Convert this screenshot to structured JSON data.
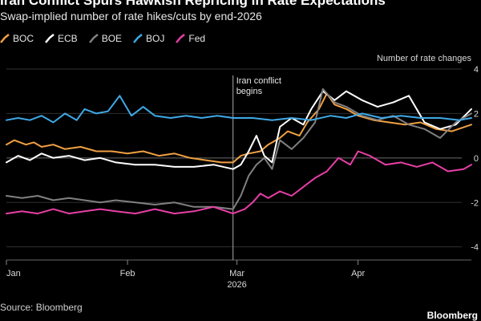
{
  "header": {
    "title": "Iran Conflict Spurs Hawkish Repricing in Rate Expectations",
    "subtitle": "Swap-implied number of rate hikes/cuts by end-2026"
  },
  "footer": {
    "source": "Source: Bloomberg",
    "brand": "Bloomberg"
  },
  "colors": {
    "BOC": "#f0a043",
    "ECB": "#ffffff",
    "BOE": "#808080",
    "BOJ": "#3fa9e6",
    "Fed": "#e83fa6"
  },
  "chart_data": {
    "type": "line",
    "title": "Iran Conflict Spurs Hawkish Repricing in Rate Expectations",
    "subtitle": "Swap-implied number of rate hikes/cuts by end-2026",
    "ylabel": "Number of rate changes",
    "xlabel": "2026",
    "x_ticks": [
      "Jan",
      "Feb",
      "Mar",
      "Apr"
    ],
    "y_ticks": [
      4,
      2,
      0,
      -2,
      -4
    ],
    "ylim": [
      -4.3,
      4
    ],
    "x_domain": [
      "2026-01-01",
      "2026-04-30"
    ],
    "grid": true,
    "legend": "top-left",
    "annotation": {
      "date": "2026-02-28",
      "label_line1": "Iran conflict",
      "label_line2": "begins"
    },
    "series": [
      {
        "name": "BOC",
        "points": [
          [
            "2026-01-01",
            0.6
          ],
          [
            "2026-01-03",
            0.8
          ],
          [
            "2026-01-06",
            0.6
          ],
          [
            "2026-01-08",
            0.7
          ],
          [
            "2026-01-10",
            0.5
          ],
          [
            "2026-01-13",
            0.6
          ],
          [
            "2026-01-16",
            0.4
          ],
          [
            "2026-01-20",
            0.5
          ],
          [
            "2026-01-24",
            0.3
          ],
          [
            "2026-01-28",
            0.3
          ],
          [
            "2026-02-01",
            0.2
          ],
          [
            "2026-02-05",
            0.3
          ],
          [
            "2026-02-09",
            0.1
          ],
          [
            "2026-02-13",
            0.2
          ],
          [
            "2026-02-17",
            0.0
          ],
          [
            "2026-02-21",
            -0.1
          ],
          [
            "2026-02-25",
            -0.2
          ],
          [
            "2026-02-28",
            -0.2
          ],
          [
            "2026-03-02",
            0.1
          ],
          [
            "2026-03-04",
            0.2
          ],
          [
            "2026-03-07",
            0.3
          ],
          [
            "2026-03-09",
            0.6
          ],
          [
            "2026-03-12",
            0.9
          ],
          [
            "2026-03-14",
            1.2
          ],
          [
            "2026-03-17",
            1.0
          ],
          [
            "2026-03-19",
            1.6
          ],
          [
            "2026-03-22",
            2.2
          ],
          [
            "2026-03-24",
            2.9
          ],
          [
            "2026-03-26",
            2.4
          ],
          [
            "2026-03-29",
            2.2
          ],
          [
            "2026-04-01",
            1.9
          ],
          [
            "2026-04-05",
            1.7
          ],
          [
            "2026-04-09",
            1.6
          ],
          [
            "2026-04-13",
            1.5
          ],
          [
            "2026-04-17",
            1.6
          ],
          [
            "2026-04-21",
            1.3
          ],
          [
            "2026-04-25",
            1.2
          ],
          [
            "2026-04-30",
            1.5
          ]
        ]
      },
      {
        "name": "ECB",
        "points": [
          [
            "2026-01-01",
            -0.2
          ],
          [
            "2026-01-04",
            0.1
          ],
          [
            "2026-01-07",
            -0.1
          ],
          [
            "2026-01-10",
            0.2
          ],
          [
            "2026-01-13",
            0.0
          ],
          [
            "2026-01-17",
            0.1
          ],
          [
            "2026-01-21",
            -0.1
          ],
          [
            "2026-01-25",
            0.0
          ],
          [
            "2026-01-29",
            -0.2
          ],
          [
            "2026-02-03",
            -0.3
          ],
          [
            "2026-02-08",
            -0.3
          ],
          [
            "2026-02-13",
            -0.4
          ],
          [
            "2026-02-18",
            -0.4
          ],
          [
            "2026-02-23",
            -0.3
          ],
          [
            "2026-02-28",
            -0.5
          ],
          [
            "2026-03-02",
            -0.3
          ],
          [
            "2026-03-04",
            0.3
          ],
          [
            "2026-03-06",
            1.0
          ],
          [
            "2026-03-08",
            0.1
          ],
          [
            "2026-03-10",
            -0.2
          ],
          [
            "2026-03-12",
            1.4
          ],
          [
            "2026-03-15",
            1.8
          ],
          [
            "2026-03-18",
            1.5
          ],
          [
            "2026-03-20",
            2.2
          ],
          [
            "2026-03-23",
            3.0
          ],
          [
            "2026-03-26",
            2.6
          ],
          [
            "2026-03-29",
            3.0
          ],
          [
            "2026-04-02",
            2.6
          ],
          [
            "2026-04-06",
            2.3
          ],
          [
            "2026-04-10",
            2.5
          ],
          [
            "2026-04-14",
            2.8
          ],
          [
            "2026-04-18",
            1.6
          ],
          [
            "2026-04-22",
            1.3
          ],
          [
            "2026-04-26",
            1.5
          ],
          [
            "2026-04-30",
            2.2
          ]
        ]
      },
      {
        "name": "BOE",
        "points": [
          [
            "2026-01-01",
            -1.7
          ],
          [
            "2026-01-05",
            -1.8
          ],
          [
            "2026-01-09",
            -1.7
          ],
          [
            "2026-01-13",
            -1.9
          ],
          [
            "2026-01-17",
            -1.8
          ],
          [
            "2026-01-21",
            -1.9
          ],
          [
            "2026-01-25",
            -2.0
          ],
          [
            "2026-01-29",
            -1.9
          ],
          [
            "2026-02-03",
            -2.0
          ],
          [
            "2026-02-08",
            -2.1
          ],
          [
            "2026-02-13",
            -2.0
          ],
          [
            "2026-02-18",
            -2.2
          ],
          [
            "2026-02-23",
            -2.2
          ],
          [
            "2026-02-28",
            -2.3
          ],
          [
            "2026-03-02",
            -1.7
          ],
          [
            "2026-03-04",
            -0.8
          ],
          [
            "2026-03-06",
            -0.3
          ],
          [
            "2026-03-08",
            0.0
          ],
          [
            "2026-03-10",
            -0.5
          ],
          [
            "2026-03-12",
            0.8
          ],
          [
            "2026-03-15",
            0.4
          ],
          [
            "2026-03-18",
            0.9
          ],
          [
            "2026-03-21",
            1.6
          ],
          [
            "2026-03-23",
            3.1
          ],
          [
            "2026-03-26",
            2.5
          ],
          [
            "2026-03-29",
            2.3
          ],
          [
            "2026-04-02",
            1.9
          ],
          [
            "2026-04-06",
            1.7
          ],
          [
            "2026-04-10",
            1.9
          ],
          [
            "2026-04-14",
            1.5
          ],
          [
            "2026-04-18",
            1.3
          ],
          [
            "2026-04-22",
            0.9
          ],
          [
            "2026-04-26",
            1.6
          ],
          [
            "2026-04-30",
            2.0
          ]
        ]
      },
      {
        "name": "BOJ",
        "points": [
          [
            "2026-01-01",
            1.7
          ],
          [
            "2026-01-04",
            1.8
          ],
          [
            "2026-01-07",
            1.7
          ],
          [
            "2026-01-10",
            1.9
          ],
          [
            "2026-01-13",
            1.6
          ],
          [
            "2026-01-16",
            2.0
          ],
          [
            "2026-01-19",
            1.7
          ],
          [
            "2026-01-21",
            2.2
          ],
          [
            "2026-01-24",
            2.0
          ],
          [
            "2026-01-27",
            2.1
          ],
          [
            "2026-01-30",
            2.8
          ],
          [
            "2026-02-02",
            1.9
          ],
          [
            "2026-02-05",
            2.3
          ],
          [
            "2026-02-08",
            1.9
          ],
          [
            "2026-02-12",
            1.8
          ],
          [
            "2026-02-16",
            1.9
          ],
          [
            "2026-02-20",
            1.8
          ],
          [
            "2026-02-24",
            1.9
          ],
          [
            "2026-02-28",
            1.8
          ],
          [
            "2026-03-05",
            1.8
          ],
          [
            "2026-03-10",
            1.7
          ],
          [
            "2026-03-15",
            1.8
          ],
          [
            "2026-03-20",
            1.7
          ],
          [
            "2026-03-25",
            1.9
          ],
          [
            "2026-03-29",
            1.8
          ],
          [
            "2026-04-02",
            2.0
          ],
          [
            "2026-04-07",
            1.8
          ],
          [
            "2026-04-12",
            1.9
          ],
          [
            "2026-04-17",
            1.8
          ],
          [
            "2026-04-22",
            1.8
          ],
          [
            "2026-04-27",
            1.7
          ],
          [
            "2026-04-30",
            1.8
          ]
        ]
      },
      {
        "name": "Fed",
        "points": [
          [
            "2026-01-01",
            -2.5
          ],
          [
            "2026-01-05",
            -2.4
          ],
          [
            "2026-01-09",
            -2.5
          ],
          [
            "2026-01-13",
            -2.3
          ],
          [
            "2026-01-17",
            -2.5
          ],
          [
            "2026-01-21",
            -2.4
          ],
          [
            "2026-01-25",
            -2.3
          ],
          [
            "2026-01-29",
            -2.4
          ],
          [
            "2026-02-03",
            -2.5
          ],
          [
            "2026-02-08",
            -2.3
          ],
          [
            "2026-02-13",
            -2.5
          ],
          [
            "2026-02-18",
            -2.4
          ],
          [
            "2026-02-23",
            -2.2
          ],
          [
            "2026-02-28",
            -2.5
          ],
          [
            "2026-03-03",
            -2.3
          ],
          [
            "2026-03-05",
            -2.0
          ],
          [
            "2026-03-07",
            -1.6
          ],
          [
            "2026-03-09",
            -1.8
          ],
          [
            "2026-03-12",
            -1.5
          ],
          [
            "2026-03-15",
            -1.7
          ],
          [
            "2026-03-18",
            -1.3
          ],
          [
            "2026-03-21",
            -0.9
          ],
          [
            "2026-03-24",
            -0.6
          ],
          [
            "2026-03-27",
            0.0
          ],
          [
            "2026-03-30",
            -0.3
          ],
          [
            "2026-04-01",
            0.3
          ],
          [
            "2026-04-04",
            0.1
          ],
          [
            "2026-04-08",
            -0.3
          ],
          [
            "2026-04-12",
            -0.2
          ],
          [
            "2026-04-16",
            -0.4
          ],
          [
            "2026-04-20",
            -0.2
          ],
          [
            "2026-04-24",
            -0.6
          ],
          [
            "2026-04-28",
            -0.5
          ],
          [
            "2026-04-30",
            -0.3
          ]
        ]
      }
    ]
  }
}
